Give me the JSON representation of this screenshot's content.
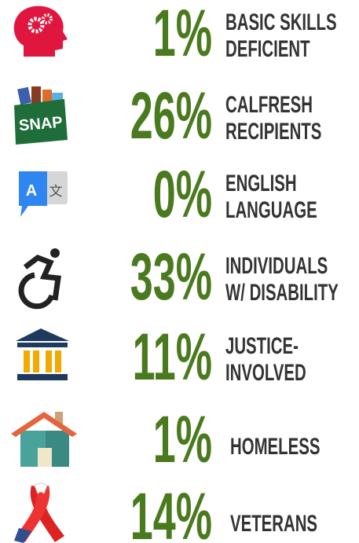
{
  "items": [
    {
      "percent": "1%",
      "label_lines": [
        "BASIC SKILLS",
        "DEFICIENT"
      ]
    },
    {
      "percent": "26%",
      "label_lines": [
        "CALFRESH",
        "RECIPIENTS"
      ]
    },
    {
      "percent": "0%",
      "label_lines": [
        "ENGLISH",
        "LANGUAGE"
      ]
    },
    {
      "percent": "33%",
      "label_lines": [
        "INDIVIDUALS",
        "W/ DISABILITY"
      ]
    },
    {
      "percent": "11%",
      "label_lines": [
        "JUSTICE-",
        "INVOLVED"
      ]
    },
    {
      "percent": "1%",
      "label_lines": [
        "HOMELESS"
      ]
    },
    {
      "percent": "14%",
      "label_lines": [
        "VETERANS"
      ]
    }
  ],
  "icon_texts": {
    "snap": "SNAP",
    "translate_latin": "A",
    "translate_cjk": "文"
  }
}
